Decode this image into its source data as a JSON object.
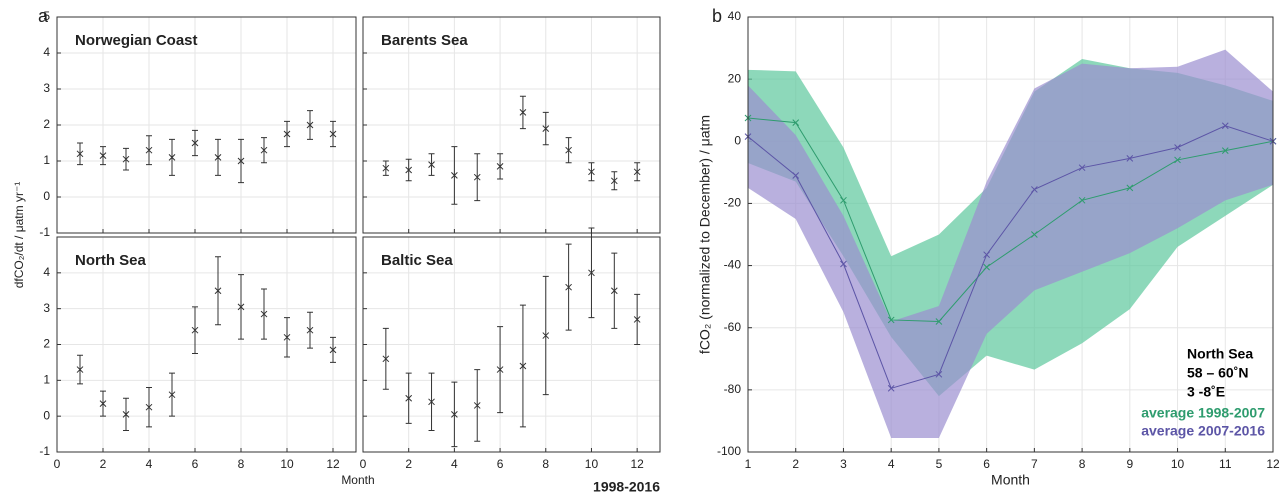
{
  "panel_a": {
    "label": "a",
    "ylabel": "dfCO₂/dt / μatm yr⁻¹",
    "xlabel": "Month",
    "note": "1998-2016"
  },
  "chart_data": [
    {
      "type": "errorbar",
      "title": "Norwegian Coast",
      "x": [
        1,
        2,
        3,
        4,
        5,
        6,
        7,
        8,
        9,
        10,
        11,
        12
      ],
      "values": [
        1.2,
        1.15,
        1.05,
        1.3,
        1.1,
        1.5,
        1.1,
        1.0,
        1.3,
        1.75,
        2.0,
        1.75
      ],
      "errors": [
        0.3,
        0.25,
        0.3,
        0.4,
        0.5,
        0.35,
        0.5,
        0.6,
        0.35,
        0.35,
        0.4,
        0.35
      ],
      "xlim": [
        0,
        13
      ],
      "ylim": [
        -1,
        5
      ],
      "xticks": [
        0,
        2,
        4,
        6,
        8,
        10,
        12
      ],
      "yticks": [
        -1,
        0,
        1,
        2,
        3,
        4,
        5
      ],
      "show_xtick_labels": false,
      "show_ytick_labels": true,
      "grid": true,
      "color": "#333333"
    },
    {
      "type": "errorbar",
      "title": "Barents Sea",
      "x": [
        1,
        2,
        3,
        4,
        5,
        6,
        7,
        8,
        9,
        10,
        11,
        12
      ],
      "values": [
        0.8,
        0.75,
        0.9,
        0.6,
        0.55,
        0.85,
        2.35,
        1.9,
        1.3,
        0.7,
        0.45,
        0.7
      ],
      "errors": [
        0.2,
        0.3,
        0.3,
        0.8,
        0.65,
        0.35,
        0.45,
        0.45,
        0.35,
        0.25,
        0.25,
        0.25
      ],
      "xlim": [
        0,
        13
      ],
      "ylim": [
        -1,
        5
      ],
      "xticks": [
        0,
        2,
        4,
        6,
        8,
        10,
        12
      ],
      "yticks": [
        -1,
        0,
        1,
        2,
        3,
        4,
        5
      ],
      "show_xtick_labels": false,
      "show_ytick_labels": false,
      "grid": true,
      "color": "#333333"
    },
    {
      "type": "errorbar",
      "title": "North Sea",
      "x": [
        1,
        2,
        3,
        4,
        5,
        6,
        7,
        8,
        9,
        10,
        11,
        12
      ],
      "values": [
        1.3,
        0.35,
        0.05,
        0.25,
        0.6,
        2.4,
        3.5,
        3.05,
        2.85,
        2.2,
        2.4,
        1.85
      ],
      "errors": [
        0.4,
        0.35,
        0.45,
        0.55,
        0.6,
        0.65,
        0.95,
        0.9,
        0.7,
        0.55,
        0.5,
        0.35
      ],
      "xlim": [
        0,
        13
      ],
      "ylim": [
        -1,
        5
      ],
      "xticks": [
        0,
        2,
        4,
        6,
        8,
        10,
        12
      ],
      "yticks": [
        -1,
        0,
        1,
        2,
        3,
        4
      ],
      "show_xtick_labels": true,
      "show_ytick_labels": true,
      "grid": true,
      "color": "#333333"
    },
    {
      "type": "errorbar",
      "title": "Baltic Sea",
      "x": [
        1,
        2,
        3,
        4,
        5,
        6,
        7,
        8,
        9,
        10,
        11,
        12
      ],
      "values": [
        1.6,
        0.5,
        0.4,
        0.05,
        0.3,
        1.3,
        1.4,
        2.25,
        3.6,
        4.0,
        3.5,
        2.7
      ],
      "errors": [
        0.85,
        0.7,
        0.8,
        0.9,
        1.0,
        1.2,
        1.7,
        1.65,
        1.2,
        1.25,
        1.05,
        0.7
      ],
      "xlim": [
        0,
        13
      ],
      "ylim": [
        -1,
        5
      ],
      "xticks": [
        0,
        2,
        4,
        6,
        8,
        10,
        12
      ],
      "yticks": [
        -1,
        0,
        1,
        2,
        3,
        4
      ],
      "show_xtick_labels": true,
      "show_ytick_labels": false,
      "grid": true,
      "color": "#333333"
    },
    {
      "type": "band-line",
      "panel_label": "b",
      "xlabel": "Month",
      "ylabel": "fCO₂ (normalized to December) / μatm",
      "x": [
        1,
        2,
        3,
        4,
        5,
        6,
        7,
        8,
        9,
        10,
        11,
        12
      ],
      "series": [
        {
          "name": "average 1998-2007",
          "color": "#2e9c6e",
          "band_color": "#5cc79c",
          "values": [
            7.5,
            6,
            -19,
            -57.5,
            -58,
            -40.5,
            -30,
            -19,
            -15,
            -6,
            -3,
            0
          ],
          "upper": [
            23,
            22.5,
            -2,
            -37,
            -30,
            -15,
            16,
            26.5,
            23.5,
            22,
            18,
            13
          ],
          "lower": [
            -7,
            -13,
            -37,
            -63,
            -82,
            -69,
            -73.5,
            -65,
            -54,
            -34,
            -24,
            -14
          ]
        },
        {
          "name": "average 2007-2016",
          "color": "#5c55a6",
          "band_color": "#9b8fd0",
          "values": [
            1.5,
            -11,
            -39.5,
            -79.5,
            -75,
            -36.5,
            -15.5,
            -8.5,
            -5.5,
            -2,
            5,
            0
          ],
          "upper": [
            18,
            2,
            -24,
            -58,
            -53,
            -13,
            17,
            25,
            23.5,
            24,
            29.5,
            16
          ],
          "lower": [
            -15,
            -25,
            -55,
            -95.5,
            -95.5,
            -62,
            -48,
            -42,
            -36,
            -28,
            -19,
            -14
          ]
        }
      ],
      "annotations": [
        "North Sea",
        "58 – 60˚N",
        "3 -8˚E"
      ],
      "xlim": [
        1,
        12
      ],
      "ylim": [
        -100,
        40
      ],
      "xticks": [
        1,
        2,
        3,
        4,
        5,
        6,
        7,
        8,
        9,
        10,
        11,
        12
      ],
      "yticks": [
        -100,
        -80,
        -60,
        -40,
        -20,
        0,
        20,
        40
      ],
      "grid": true
    }
  ]
}
